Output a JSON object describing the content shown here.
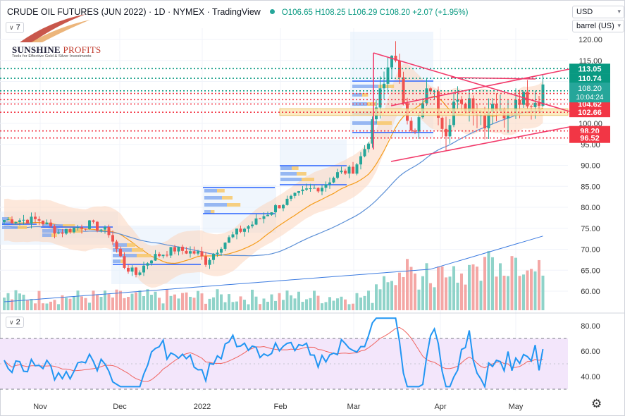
{
  "header": {
    "symbol": "CRUDE OIL FUTURES (JUN 2022) · 1D · NYMEX · TradingView",
    "ohlc": "O106.65 H108.25 L106.29 C108.20 +2.07 (+1.95%)",
    "indicator_count_main": "7",
    "indicator_count_sub": "2"
  },
  "logo": {
    "title_main": "SUNSHINE",
    "title_accent": "PROFITS",
    "tagline": "Tools for Effective Gold & Silver Investments"
  },
  "toolbar": {
    "currency": "USD",
    "unit": "barrel (US)"
  },
  "colors": {
    "up": "#26a69a",
    "down": "#ef5350",
    "green_level": "#089981",
    "red_level": "#f23645",
    "pattern": "#f23a6a",
    "volume_profile": "#2962ff",
    "rsi_line": "#2196f3",
    "rsi_ma": "#f06460",
    "band": "#fcd6bd",
    "label_neutral": "#26a69a",
    "label_gray": "#e9e9e9"
  },
  "chart_data": [
    {
      "type": "candlestick",
      "title": "CRUDE OIL FUTURES (JUN 2022)",
      "xlabel": "",
      "ylabel": "",
      "x_ticks": [
        "Nov",
        "Dec",
        "2022",
        "Feb",
        "Mar",
        "Apr",
        "May"
      ],
      "y_ticks": [
        60,
        65,
        70,
        75,
        80,
        85,
        90,
        95,
        100,
        105,
        110,
        115,
        120
      ],
      "ylim": [
        56,
        122
      ],
      "last_price": 108.2,
      "countdown": "10:04:24",
      "levels": [
        {
          "value": 113.05,
          "color": "green"
        },
        {
          "value": 110.74,
          "color": "green"
        },
        {
          "value": 107.76,
          "color": "green"
        },
        {
          "value": 107.13,
          "color": "red"
        },
        {
          "value": 105.67,
          "color": "red"
        },
        {
          "value": 104.62,
          "color": "red"
        },
        {
          "value": 102.66,
          "color": "red"
        },
        {
          "value": 98.2,
          "color": "red"
        },
        {
          "value": 96.52,
          "color": "red"
        }
      ],
      "grid": true
    },
    {
      "type": "line",
      "indicator": "RSI",
      "y_ticks": [
        40,
        60,
        80
      ],
      "ylim": [
        27,
        88
      ],
      "bands": [
        30,
        70
      ],
      "grid": true
    }
  ]
}
